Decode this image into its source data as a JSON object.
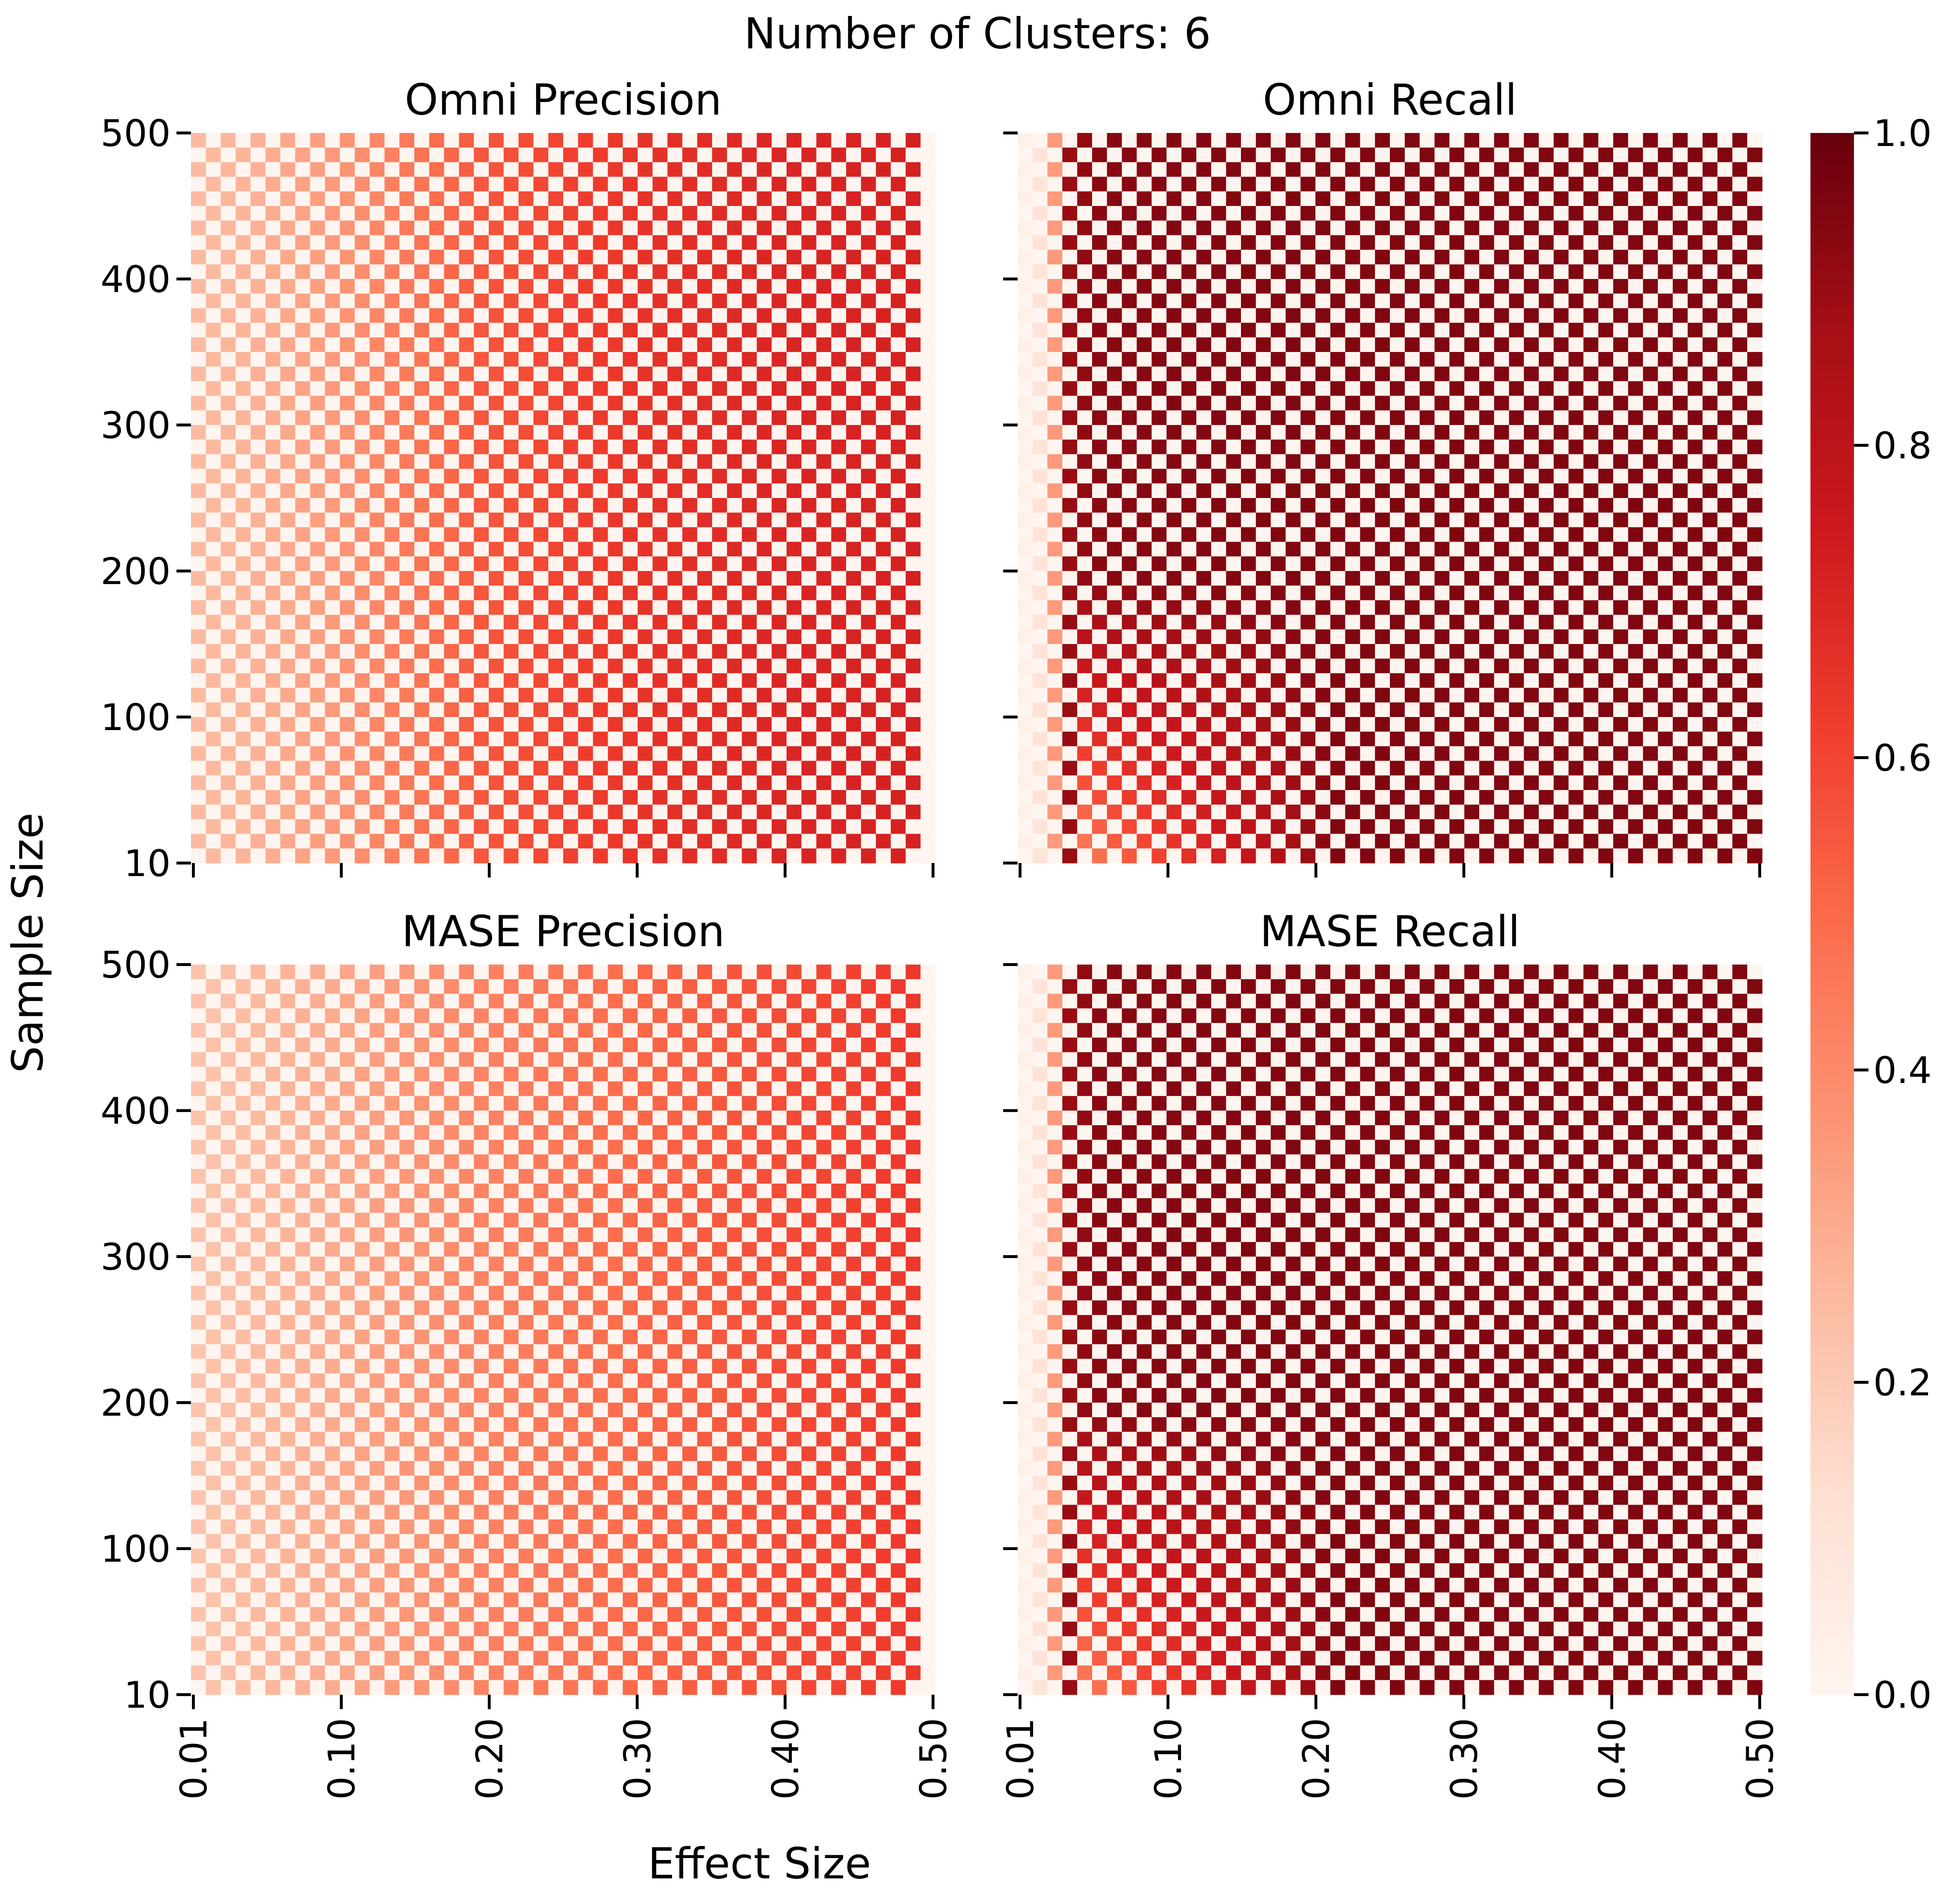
{
  "figure": {
    "suptitle": "Number of Clusters: 6",
    "xlabel": "Effect Size",
    "ylabel": "Sample Size"
  },
  "chart_data": [
    {
      "type": "heatmap",
      "title": "Omni Precision",
      "xlabel": "Effect Size",
      "ylabel": "Sample Size",
      "x_ticks": [
        "0.01",
        "0.10",
        "0.20",
        "0.30",
        "0.40",
        "0.50"
      ],
      "y_ticks": [
        "10",
        "100",
        "200",
        "300",
        "400",
        "500"
      ],
      "x_range": [
        0.01,
        0.5
      ],
      "y_range": [
        10,
        500
      ],
      "grid_cols": 50,
      "grid_rows": 50,
      "pattern": "checkerboard: alternate cells are 0.0",
      "nonzero_cell_profile": {
        "effect_size": [
          0.01,
          0.05,
          0.1,
          0.15,
          0.2,
          0.3,
          0.4,
          0.5
        ],
        "value": [
          0.25,
          0.28,
          0.35,
          0.45,
          0.55,
          0.65,
          0.7,
          0.72
        ]
      },
      "zero_columns_at_effect_size": [
        0.5
      ],
      "vmin": 0.0,
      "vmax": 1.0
    },
    {
      "type": "heatmap",
      "title": "Omni Recall",
      "xlabel": "Effect Size",
      "ylabel": "Sample Size",
      "x_ticks": [
        "0.01",
        "0.10",
        "0.20",
        "0.30",
        "0.40",
        "0.50"
      ],
      "y_ticks": [
        "10",
        "100",
        "200",
        "300",
        "400",
        "500"
      ],
      "x_range": [
        0.01,
        0.5
      ],
      "y_range": [
        10,
        500
      ],
      "grid_cols": 50,
      "grid_rows": 50,
      "pattern": "checkerboard: alternate cells are 0.0",
      "nonzero_cell_profile": {
        "effect_size": [
          0.01,
          0.02,
          0.03,
          0.04,
          0.06,
          0.1,
          0.2,
          0.5
        ],
        "value": [
          0.03,
          0.1,
          0.35,
          0.9,
          0.93,
          0.94,
          0.95,
          0.95
        ]
      },
      "low_sample_region": {
        "sample_size": [
          10,
          100,
          200
        ],
        "note": "cells near effect size 0.05-0.20 are lighter at low sample size (about 0.3-0.7)"
      },
      "zero_columns_at_effect_size": [],
      "vmin": 0.0,
      "vmax": 1.0
    },
    {
      "type": "heatmap",
      "title": "MASE Precision",
      "xlabel": "Effect Size",
      "ylabel": "Sample Size",
      "x_ticks": [
        "0.01",
        "0.10",
        "0.20",
        "0.30",
        "0.40",
        "0.50"
      ],
      "y_ticks": [
        "10",
        "100",
        "200",
        "300",
        "400",
        "500"
      ],
      "x_range": [
        0.01,
        0.5
      ],
      "y_range": [
        10,
        500
      ],
      "grid_cols": 50,
      "grid_rows": 50,
      "pattern": "checkerboard: alternate cells are 0.0",
      "nonzero_cell_profile": {
        "effect_size": [
          0.01,
          0.05,
          0.1,
          0.15,
          0.2,
          0.3,
          0.4,
          0.5
        ],
        "value": [
          0.22,
          0.25,
          0.3,
          0.36,
          0.42,
          0.5,
          0.58,
          0.64
        ]
      },
      "zero_columns_at_effect_size": [
        0.5
      ],
      "vmin": 0.0,
      "vmax": 1.0
    },
    {
      "type": "heatmap",
      "title": "MASE Recall",
      "xlabel": "Effect Size",
      "ylabel": "Sample Size",
      "x_ticks": [
        "0.01",
        "0.10",
        "0.20",
        "0.30",
        "0.40",
        "0.50"
      ],
      "y_ticks": [
        "10",
        "100",
        "200",
        "300",
        "400",
        "500"
      ],
      "x_range": [
        0.01,
        0.5
      ],
      "y_range": [
        10,
        500
      ],
      "grid_cols": 50,
      "grid_rows": 50,
      "pattern": "checkerboard: alternate cells are 0.0",
      "nonzero_cell_profile": {
        "effect_size": [
          0.01,
          0.02,
          0.03,
          0.04,
          0.06,
          0.1,
          0.2,
          0.5
        ],
        "value": [
          0.03,
          0.1,
          0.35,
          0.9,
          0.93,
          0.94,
          0.95,
          0.95
        ]
      },
      "low_sample_region": {
        "sample_size": [
          10,
          100,
          200
        ],
        "note": "cells near effect size 0.05-0.20 are lighter at low sample size (about 0.3-0.7)"
      },
      "zero_columns_at_effect_size": [],
      "vmin": 0.0,
      "vmax": 1.0
    }
  ],
  "colorbar": {
    "colormap": "Reds",
    "vmin": 0.0,
    "vmax": 1.0,
    "ticks": [
      "0.0",
      "0.2",
      "0.4",
      "0.6",
      "0.8",
      "1.0"
    ],
    "stops": [
      "#fff5f0",
      "#fee0d2",
      "#fcbba1",
      "#fc9272",
      "#fb6a4a",
      "#ef3b2c",
      "#cb181d",
      "#a50f15",
      "#67000d"
    ]
  }
}
